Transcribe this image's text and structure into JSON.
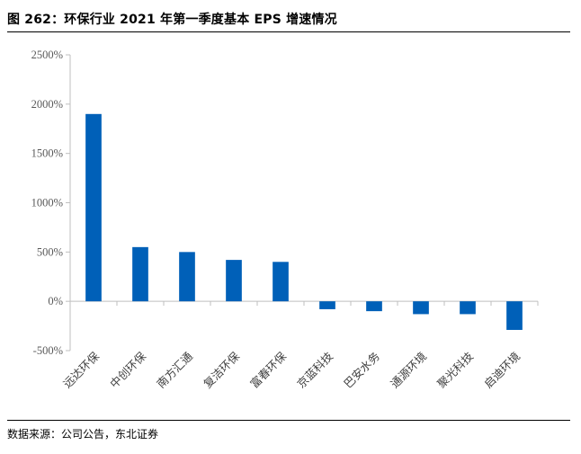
{
  "header": {
    "title": "图 262：环保行业 2021 年第一季度基本 EPS 增速情况"
  },
  "footer": {
    "source": "数据来源：公司公告，东北证券"
  },
  "chart_data": {
    "type": "bar",
    "title": "",
    "xlabel": "",
    "ylabel": "",
    "categories": [
      "远达环保",
      "中创环保",
      "南方汇通",
      "复洁环保",
      "富春环保",
      "京蓝科技",
      "巴安水务",
      "通源环境",
      "聚光科技",
      "启迪环境"
    ],
    "series": [
      {
        "values": [
          1900,
          550,
          500,
          420,
          400,
          -80,
          -100,
          -130,
          -130,
          -290
        ]
      }
    ],
    "yticks": [
      -500,
      0,
      500,
      1000,
      1500,
      2000,
      2500
    ],
    "ytick_labels": [
      "-500%",
      "0%",
      "500%",
      "1000%",
      "1500%",
      "2000%",
      "2500%"
    ],
    "ylim": [
      -500,
      2500
    ],
    "grid": false,
    "legend": "none",
    "bar_color": "#0060B8"
  }
}
